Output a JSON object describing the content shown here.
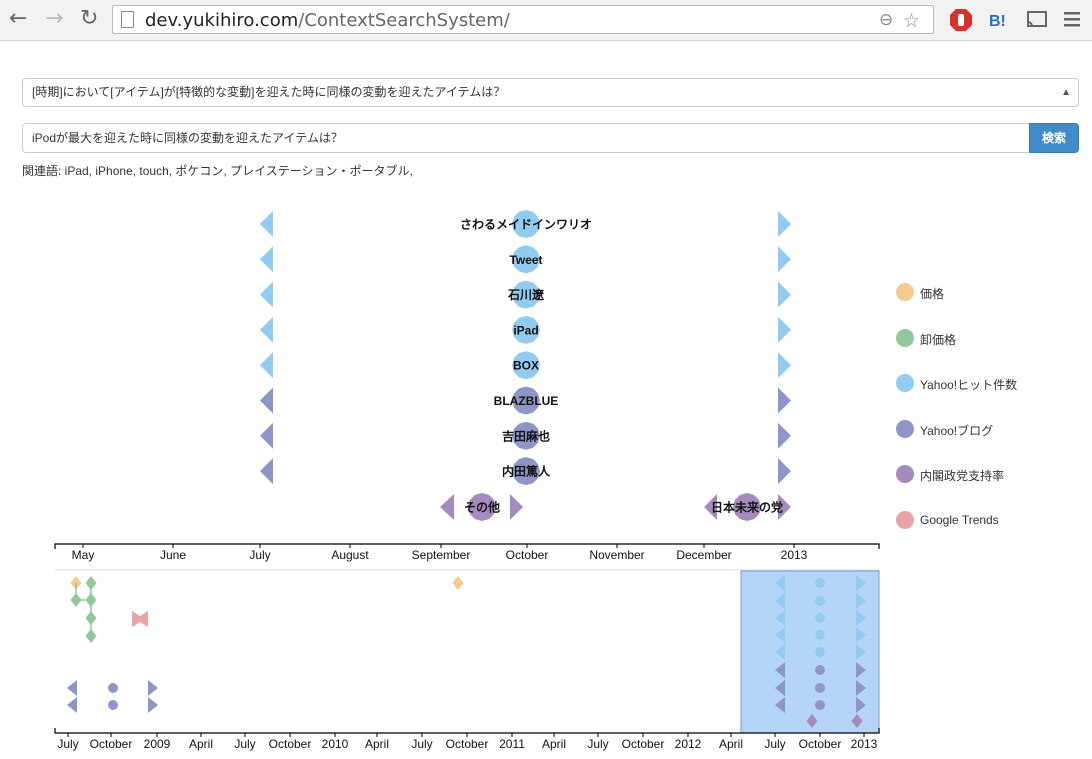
{
  "browser": {
    "url_host": "dev.yukihiro.com",
    "url_path": "/ContextSearchSystem/"
  },
  "query": {
    "template_select": "[時期]において[アイテム]が[特徴的な変動]を迎えた時に同様の変動を迎えたアイテムは？",
    "search_value": "iPodが最大を迎えた時に同様の変動を迎えたアイテムは？",
    "search_button": "検索",
    "related_words": "関連語: iPad, iPhone, touch, ポケコン, プレイステーション・ポータブル,"
  },
  "legend": [
    {
      "label": "価格",
      "color": "#f2cc8f"
    },
    {
      "label": "卸価格",
      "color": "#93c89b"
    },
    {
      "label": "Yahoo!ヒット件数",
      "color": "#92cbf0"
    },
    {
      "label": "Yahoo!ブログ",
      "color": "#8e95c9"
    },
    {
      "label": "内閣政党支持率",
      "color": "#a58bbd"
    },
    {
      "label": "Google Trends",
      "color": "#eba4a4"
    }
  ],
  "results": [
    {
      "label": "さわるメイドインワリオ",
      "color": "#92cbf0"
    },
    {
      "label": "Tweet",
      "color": "#92cbf0"
    },
    {
      "label": "石川遼",
      "color": "#92cbf0"
    },
    {
      "label": "iPad",
      "color": "#92cbf0"
    },
    {
      "label": "BOX",
      "color": "#92cbf0"
    },
    {
      "label": "BLAZBLUE",
      "color": "#8e95c9"
    },
    {
      "label": "吉田麻也",
      "color": "#8e95c9"
    },
    {
      "label": "内田篤人",
      "color": "#8e95c9"
    }
  ],
  "extra_results": [
    {
      "label": "その他",
      "color": "#a58bbd"
    },
    {
      "label": "日本未来の党",
      "color": "#a58bbd"
    }
  ],
  "focus_axis_labels": [
    "May",
    "June",
    "July",
    "August",
    "September",
    "October",
    "November",
    "December",
    "2013"
  ],
  "context_axis_labels": [
    "July",
    "October",
    "2009",
    "April",
    "July",
    "October",
    "2010",
    "April",
    "July",
    "October",
    "2011",
    "April",
    "July",
    "October",
    "2012",
    "April",
    "July",
    "October",
    "2013"
  ]
}
